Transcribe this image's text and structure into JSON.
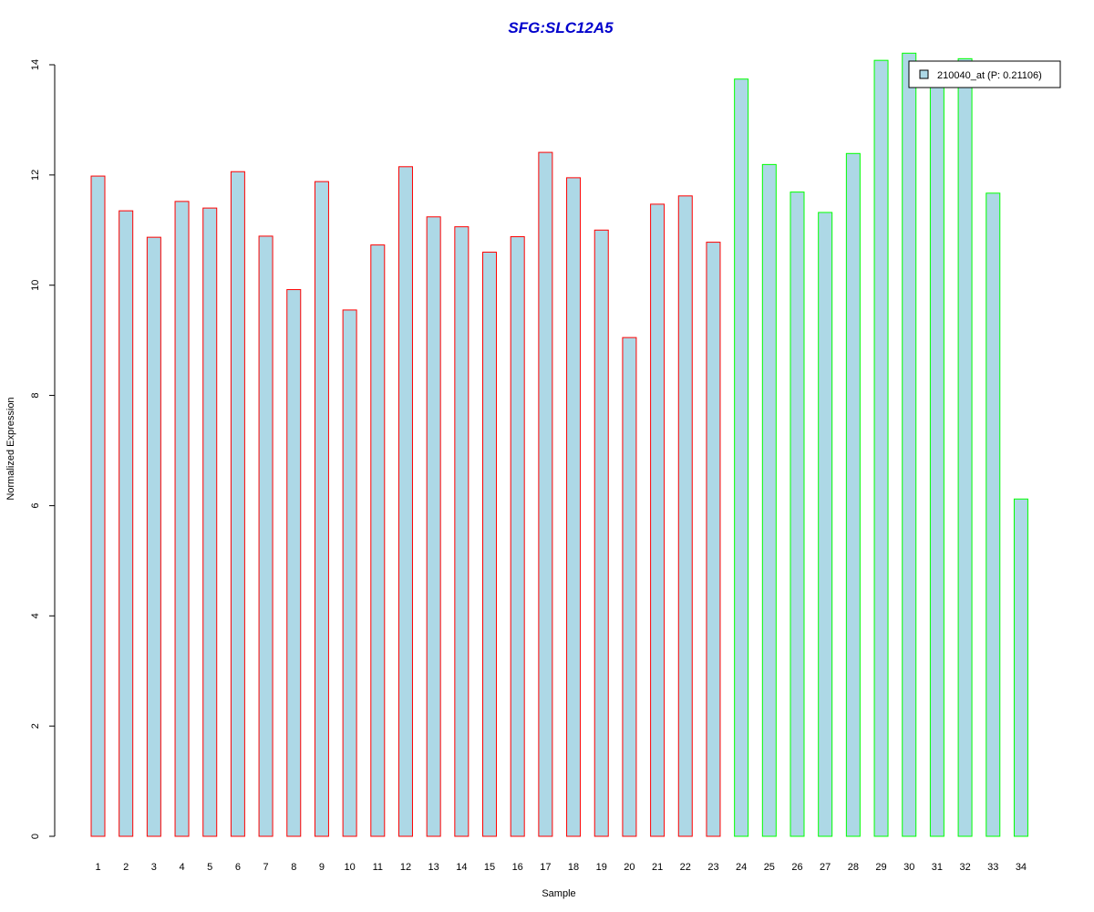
{
  "chart_data": {
    "type": "bar",
    "title": "SFG:SLC12A5",
    "xlabel": "Sample",
    "ylabel": "Normalized Expression",
    "ylim": [
      0,
      14
    ],
    "yticks": [
      0,
      2,
      4,
      6,
      8,
      10,
      12,
      14
    ],
    "categories": [
      "1",
      "2",
      "3",
      "4",
      "5",
      "6",
      "7",
      "8",
      "9",
      "10",
      "11",
      "12",
      "13",
      "14",
      "15",
      "16",
      "17",
      "18",
      "19",
      "20",
      "21",
      "22",
      "23",
      "24",
      "25",
      "26",
      "27",
      "28",
      "29",
      "30",
      "31",
      "32",
      "33",
      "34"
    ],
    "series": [
      {
        "name": "210040_at (P: 0.21106)",
        "values": [
          11.98,
          11.35,
          10.87,
          11.52,
          11.4,
          12.06,
          10.89,
          9.92,
          11.88,
          9.55,
          10.73,
          12.15,
          11.24,
          11.06,
          10.6,
          10.88,
          12.41,
          11.95,
          11.0,
          9.05,
          11.47,
          11.62,
          10.78,
          13.74,
          12.19,
          11.69,
          11.32,
          12.39,
          14.08,
          14.21,
          13.75,
          14.11,
          11.67,
          6.12
        ],
        "group": [
          "A",
          "A",
          "A",
          "A",
          "A",
          "A",
          "A",
          "A",
          "A",
          "A",
          "A",
          "A",
          "A",
          "A",
          "A",
          "A",
          "A",
          "A",
          "A",
          "A",
          "A",
          "A",
          "A",
          "B",
          "B",
          "B",
          "B",
          "B",
          "B",
          "B",
          "B",
          "B",
          "B",
          "B"
        ]
      }
    ],
    "colors": {
      "title": "#0000cc",
      "bar_fill": "#add8e6",
      "group_A_border": "#ff0000",
      "group_B_border": "#00ff00",
      "axis": "#000000"
    },
    "legend": {
      "position": "top-right",
      "label": "210040_at (P: 0.21106)"
    },
    "grid": false
  }
}
